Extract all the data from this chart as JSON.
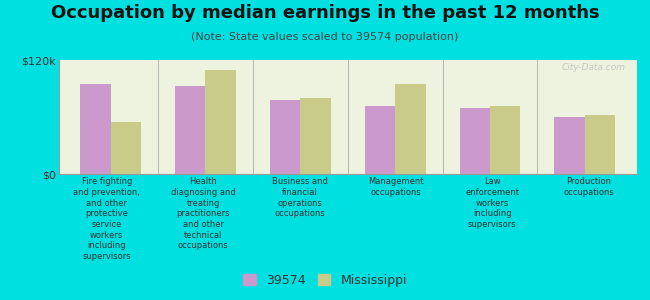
{
  "title": "Occupation by median earnings in the past 12 months",
  "subtitle": "(Note: State values scaled to 39574 population)",
  "background_color": "#00e0e0",
  "plot_bg_color": "#eef3e0",
  "categories": [
    "Fire fighting\nand prevention,\nand other\nprotective\nservice\nworkers\nincluding\nsupervisors",
    "Health\ndiagnosing and\ntreating\npractitioners\nand other\ntechnical\noccupations",
    "Business and\nfinancial\noperations\noccupations",
    "Management\noccupations",
    "Law\nenforcement\nworkers\nincluding\nsupervisors",
    "Production\noccupations"
  ],
  "values_39574": [
    95000,
    93000,
    78000,
    72000,
    70000,
    60000
  ],
  "values_mississippi": [
    55000,
    110000,
    80000,
    95000,
    72000,
    62000
  ],
  "color_39574": "#cc99cc",
  "color_mississippi": "#c8cc88",
  "ylim": [
    0,
    120000
  ],
  "ytick_labels": [
    "$0",
    "$120k"
  ],
  "legend_39574": "39574",
  "legend_mississippi": "Mississippi",
  "watermark": "City-Data.com",
  "title_fontsize": 13,
  "subtitle_fontsize": 8,
  "bar_width": 0.32
}
